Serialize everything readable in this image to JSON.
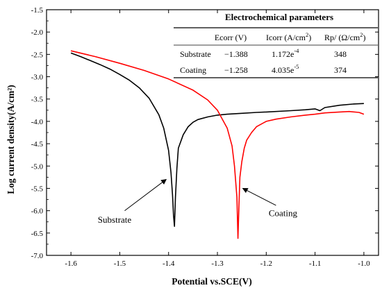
{
  "chart_data": {
    "type": "line",
    "xlabel": "Potential vs.SCE(V)",
    "ylabel": "Log current density(A/cm²)",
    "xlim": [
      -1.65,
      -0.97
    ],
    "ylim": [
      -7.0,
      -1.5
    ],
    "x_ticks": [
      -1.6,
      -1.5,
      -1.4,
      -1.3,
      -1.2,
      -1.1,
      -1.0
    ],
    "y_ticks": [
      -1.5,
      -2.0,
      -2.5,
      -3.0,
      -3.5,
      -4.0,
      -4.5,
      -5.0,
      -5.5,
      -6.0,
      -6.5,
      -7.0
    ],
    "x_tick_labels": [
      "-1.6",
      "-1.5",
      "-1.4",
      "-1.3",
      "-1.2",
      "-1.1",
      "-1.0"
    ],
    "y_tick_labels": [
      "-1.5",
      "-2.0",
      "-2.5",
      "-3.0",
      "-3.5",
      "-4.0",
      "-4.5",
      "-5.0",
      "-5.5",
      "-6.0",
      "-6.5",
      "-7.0"
    ],
    "series": [
      {
        "name": "Substrate",
        "color": "#000000",
        "x": [
          -1.6,
          -1.58,
          -1.56,
          -1.54,
          -1.52,
          -1.5,
          -1.48,
          -1.46,
          -1.44,
          -1.42,
          -1.41,
          -1.4,
          -1.395,
          -1.392,
          -1.39,
          -1.388,
          -1.386,
          -1.383,
          -1.38,
          -1.37,
          -1.36,
          -1.35,
          -1.34,
          -1.32,
          -1.3,
          -1.28,
          -1.25,
          -1.22,
          -1.2,
          -1.15,
          -1.12,
          -1.1,
          -1.09,
          -1.08,
          -1.05,
          -1.02,
          -1.0
        ],
        "y": [
          -2.47,
          -2.55,
          -2.64,
          -2.73,
          -2.83,
          -2.95,
          -3.08,
          -3.25,
          -3.48,
          -3.85,
          -4.15,
          -4.65,
          -5.15,
          -5.65,
          -6.1,
          -6.35,
          -5.7,
          -5.05,
          -4.6,
          -4.3,
          -4.12,
          -4.02,
          -3.96,
          -3.9,
          -3.86,
          -3.84,
          -3.82,
          -3.8,
          -3.79,
          -3.76,
          -3.74,
          -3.72,
          -3.76,
          -3.69,
          -3.64,
          -3.61,
          -3.6
        ]
      },
      {
        "name": "Coating",
        "color": "#ff0000",
        "x": [
          -1.6,
          -1.55,
          -1.5,
          -1.45,
          -1.4,
          -1.35,
          -1.32,
          -1.3,
          -1.28,
          -1.27,
          -1.265,
          -1.26,
          -1.258,
          -1.256,
          -1.254,
          -1.25,
          -1.245,
          -1.24,
          -1.23,
          -1.22,
          -1.2,
          -1.18,
          -1.15,
          -1.12,
          -1.1,
          -1.08,
          -1.05,
          -1.03,
          -1.01,
          -1.0
        ],
        "y": [
          -2.42,
          -2.55,
          -2.7,
          -2.86,
          -3.05,
          -3.3,
          -3.52,
          -3.75,
          -4.15,
          -4.55,
          -5.0,
          -5.7,
          -6.62,
          -5.9,
          -5.25,
          -4.9,
          -4.6,
          -4.42,
          -4.25,
          -4.12,
          -4.0,
          -3.95,
          -3.9,
          -3.86,
          -3.84,
          -3.81,
          -3.79,
          -3.78,
          -3.8,
          -3.84
        ]
      }
    ],
    "annotations": [
      {
        "text": "Substrate",
        "text_x": -1.545,
        "text_y": -6.27,
        "arrow_from": [
          -1.49,
          -6.0
        ],
        "arrow_to": [
          -1.405,
          -5.3
        ]
      },
      {
        "text": "Coating",
        "text_x": -1.195,
        "text_y": -6.12,
        "arrow_from": [
          -1.18,
          -5.88
        ],
        "arrow_to": [
          -1.248,
          -5.5
        ]
      }
    ],
    "table": {
      "title": "Electrochemical parameters",
      "headers": [
        "",
        "Ecorr (V)",
        "Icorr (A/cm",
        "Rp/ (Ω/cm"
      ],
      "header_sups": [
        "",
        "",
        "2",
        "2"
      ],
      "header_suffix": [
        "",
        "",
        ")",
        ")"
      ],
      "rows": [
        {
          "label": "Substrate",
          "ecorr": "−1.388",
          "icorr": "1.172e",
          "icorr_exp": "-4",
          "rp": "348"
        },
        {
          "label": "Coating",
          "ecorr": "−1.258",
          "icorr": "4.035e",
          "icorr_exp": "-5",
          "rp": "374"
        }
      ]
    }
  }
}
